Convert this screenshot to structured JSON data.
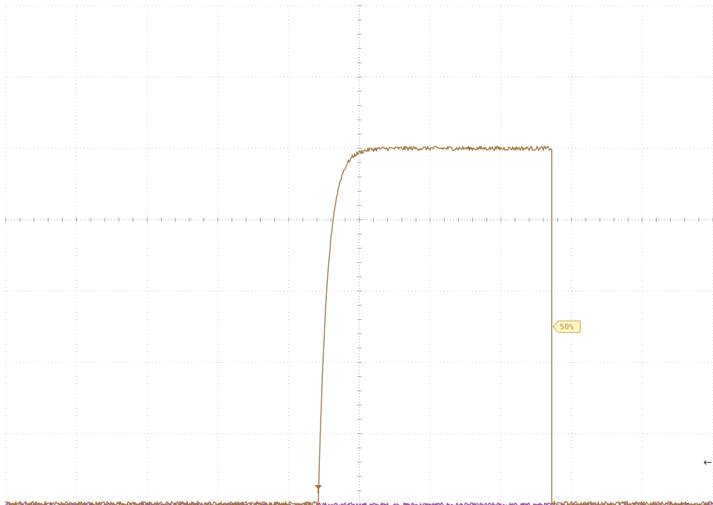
{
  "chart_data": {
    "type": "line",
    "grid": true,
    "divisions": {
      "x": 10,
      "y": 7
    },
    "xlim": [
      0,
      10
    ],
    "ylim": [
      -3,
      4
    ],
    "series": [
      {
        "color": "#a0763c",
        "kind": "pulse",
        "baseline": -2.98,
        "high": 2.0,
        "rise_start": 4.42,
        "rise_time_constant": 0.13,
        "fall_time": 7.72,
        "noise": 0.03
      },
      {
        "color": "#9a4a9a",
        "kind": "flat",
        "baseline": -3.0,
        "noise": 0.03
      }
    ],
    "markers": {
      "trigger_label": "50%",
      "trigger_time": 7.72,
      "trigger_level": -0.5,
      "trigger_point_time": 4.42,
      "ground_arrow": "←",
      "ground_arrow_level": -2.4
    }
  }
}
